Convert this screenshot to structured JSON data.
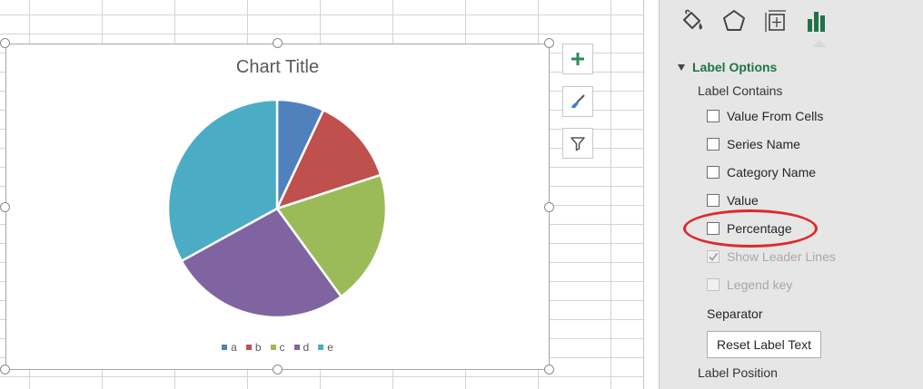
{
  "chart": {
    "title": "Chart Title"
  },
  "chart_data": {
    "type": "pie",
    "title": "Chart Title",
    "categories": [
      "a",
      "b",
      "c",
      "d",
      "e"
    ],
    "values": [
      7,
      13,
      20,
      27,
      33
    ],
    "colors": [
      "#4f81bd",
      "#c0504d",
      "#9bbb59",
      "#8064a2",
      "#4bacc6"
    ],
    "legend": "bottom"
  },
  "chart_buttons": [
    {
      "name": "chart-elements",
      "icon": "plus-icon"
    },
    {
      "name": "chart-styles",
      "icon": "paintbrush-icon"
    },
    {
      "name": "chart-filters",
      "icon": "funnel-icon"
    }
  ],
  "pane": {
    "tabs": [
      {
        "name": "fill-line",
        "icon": "paint-bucket-icon"
      },
      {
        "name": "effects",
        "icon": "pentagon-icon"
      },
      {
        "name": "size-properties",
        "icon": "size-properties-icon"
      },
      {
        "name": "label-options",
        "icon": "bar-chart-icon",
        "active": true
      }
    ],
    "section": "Label Options",
    "label_contains": "Label Contains",
    "options": [
      {
        "label": "Value From Cells",
        "checked": false,
        "disabled": false
      },
      {
        "label": "Series Name",
        "checked": false,
        "disabled": false
      },
      {
        "label": "Category Name",
        "checked": false,
        "disabled": false
      },
      {
        "label": "Value",
        "checked": false,
        "disabled": false
      },
      {
        "label": "Percentage",
        "checked": false,
        "disabled": false
      },
      {
        "label": "Show Leader Lines",
        "checked": true,
        "disabled": true
      },
      {
        "label": "Legend key",
        "checked": false,
        "disabled": true
      }
    ],
    "separator": "Separator",
    "reset_button": "Reset Label Text",
    "label_position": "Label Position"
  },
  "colors": {
    "accent": "#217346",
    "highlight": "#dd2a2a"
  }
}
